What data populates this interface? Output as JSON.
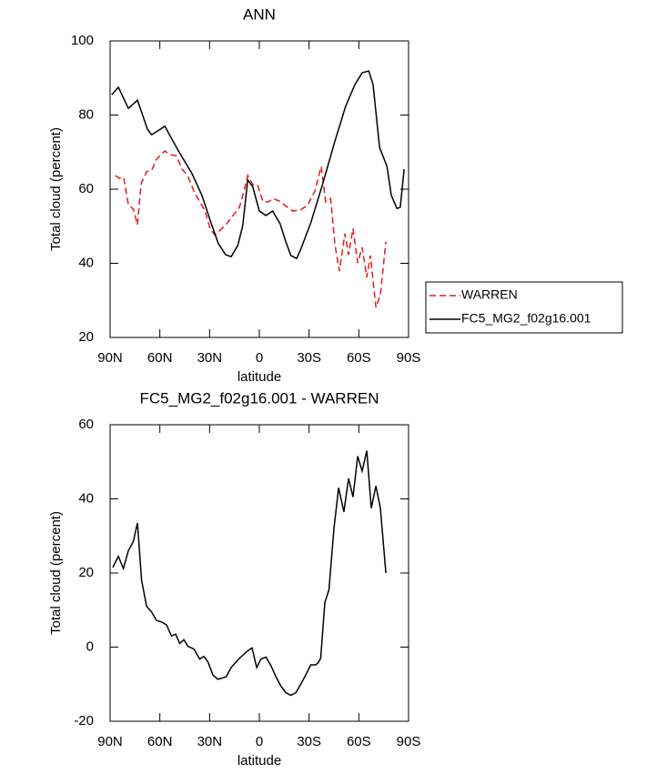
{
  "chart_data": [
    {
      "type": "line",
      "title": "ANN",
      "xlabel": "latitude",
      "ylabel": "Total cloud (percent)",
      "xlim": [
        90,
        -90
      ],
      "xticks": [
        {
          "value": 90,
          "label": "90N"
        },
        {
          "value": 60,
          "label": "60N"
        },
        {
          "value": 30,
          "label": "30N"
        },
        0,
        {
          "value": -30,
          "label": "30S"
        },
        {
          "value": -60,
          "label": "60S"
        },
        {
          "value": -90,
          "label": "90S"
        }
      ],
      "ylim": [
        20,
        100
      ],
      "yticks": [
        20,
        40,
        60,
        80,
        100
      ],
      "legend": "right",
      "series": [
        {
          "name": "WARREN",
          "color": "#e41a1c",
          "dashed": true,
          "x": [
            86.7,
            84.5,
            81.8,
            79,
            76,
            73.5,
            71.3,
            68,
            64.8,
            62,
            57,
            53.8,
            50,
            46.6,
            43.3,
            39,
            33,
            29.6,
            26.9,
            24.1,
            19.7,
            15.9,
            12,
            10,
            7,
            3.9,
            1.1,
            -2.2,
            -5.5,
            -8.2,
            -12,
            -16.5,
            -20.3,
            -24.7,
            -29,
            -33.5,
            -37.3,
            -40,
            -43,
            -45.6,
            -48.3,
            -51.6,
            -53.8,
            -56.5,
            -59.3,
            -62,
            -64.8,
            -67,
            -70.3,
            -73,
            -76.3
          ],
          "values": [
            63.7,
            62.9,
            63.2,
            55.8,
            54.6,
            50.4,
            61.5,
            64.7,
            65.2,
            68.1,
            70.3,
            69.3,
            69,
            65.4,
            63.7,
            59,
            54.4,
            49.2,
            47.7,
            48.7,
            50.7,
            52.9,
            55.1,
            58.3,
            63.7,
            61.2,
            61.2,
            56.6,
            56.6,
            57.5,
            56.8,
            55.3,
            54.1,
            54.4,
            55.6,
            59.5,
            66.1,
            56.6,
            57.5,
            45,
            37.9,
            48,
            42.3,
            49.4,
            40.1,
            44.3,
            36.2,
            42.1,
            28.1,
            31.5,
            45.8
          ]
        },
        {
          "name": "FC5_MG2_f02g16.001",
          "color": "#000000",
          "dashed": false,
          "x": [
            89,
            85,
            79,
            73.5,
            67.5,
            65,
            62,
            57,
            49,
            40.6,
            34.6,
            29,
            24.7,
            20.3,
            17,
            13,
            10,
            7,
            4,
            0,
            -4,
            -8,
            -12.5,
            -16,
            -19,
            -22.5,
            -25,
            -31,
            -38.4,
            -45.6,
            -52,
            -57.6,
            -62,
            -66,
            -68.6,
            -72.5,
            -77,
            -79.6,
            -83,
            -85,
            -87.3
          ],
          "values": [
            85.5,
            87.5,
            81.8,
            84,
            76.2,
            74.7,
            75.5,
            77,
            70.5,
            64.2,
            58.3,
            50.7,
            45.3,
            42.3,
            41.8,
            44.8,
            50.2,
            62.5,
            60.7,
            54.1,
            52.9,
            54.1,
            50.7,
            45.8,
            42.1,
            41.3,
            43.8,
            50.9,
            61.7,
            73,
            82.3,
            88.2,
            91.4,
            91.9,
            88.2,
            71.3,
            66.1,
            58.3,
            54.8,
            55.1,
            65.4
          ]
        }
      ]
    },
    {
      "type": "line",
      "title": "FC5_MG2_f02g16.001 - WARREN",
      "xlabel": "latitude",
      "ylabel": "Total cloud (percent)",
      "xlim": [
        90,
        -90
      ],
      "xticks": [
        {
          "value": 90,
          "label": "90N"
        },
        {
          "value": 60,
          "label": "60N"
        },
        {
          "value": 30,
          "label": "30N"
        },
        0,
        {
          "value": -30,
          "label": "30S"
        },
        {
          "value": -60,
          "label": "60S"
        },
        {
          "value": -90,
          "label": "90S"
        }
      ],
      "ylim": [
        -20,
        60
      ],
      "yticks": [
        -20,
        0,
        20,
        40,
        60
      ],
      "color": "#000000",
      "x": [
        88.4,
        85,
        82,
        79,
        76,
        73.5,
        71,
        68,
        65,
        62,
        59,
        56,
        53,
        50.5,
        48,
        45.5,
        43,
        39.5,
        36,
        33.5,
        31,
        28,
        25,
        20,
        17,
        12,
        7,
        4.4,
        1.6,
        -1,
        -4,
        -7,
        -10,
        -13,
        -16,
        -19,
        -22,
        -25,
        -28,
        -31,
        -34,
        -35.5,
        -37,
        -39.5,
        -42,
        -45,
        -47.8,
        -51,
        -53.8,
        -56.5,
        -59.3,
        -62,
        -64.8,
        -67.5,
        -70.3,
        -73,
        -76.3
      ],
      "values": [
        21.5,
        24.5,
        21.2,
        26,
        28.5,
        33.5,
        18,
        11,
        9.5,
        7.2,
        6.8,
        6,
        3,
        3.5,
        1,
        2,
        0.2,
        -0.5,
        -3.2,
        -2.5,
        -4,
        -7.5,
        -8.7,
        -8,
        -5.5,
        -3,
        -1,
        -0.2,
        -5.5,
        -3.2,
        -2.7,
        -5,
        -8,
        -10.5,
        -12.3,
        -13,
        -12.3,
        -10,
        -7.5,
        -4.8,
        -4.8,
        -4.2,
        -3,
        12,
        15.5,
        32,
        43,
        36.5,
        45.5,
        40.5,
        51.5,
        47.5,
        53,
        37.5,
        43.5,
        37.5,
        20
      ]
    }
  ]
}
